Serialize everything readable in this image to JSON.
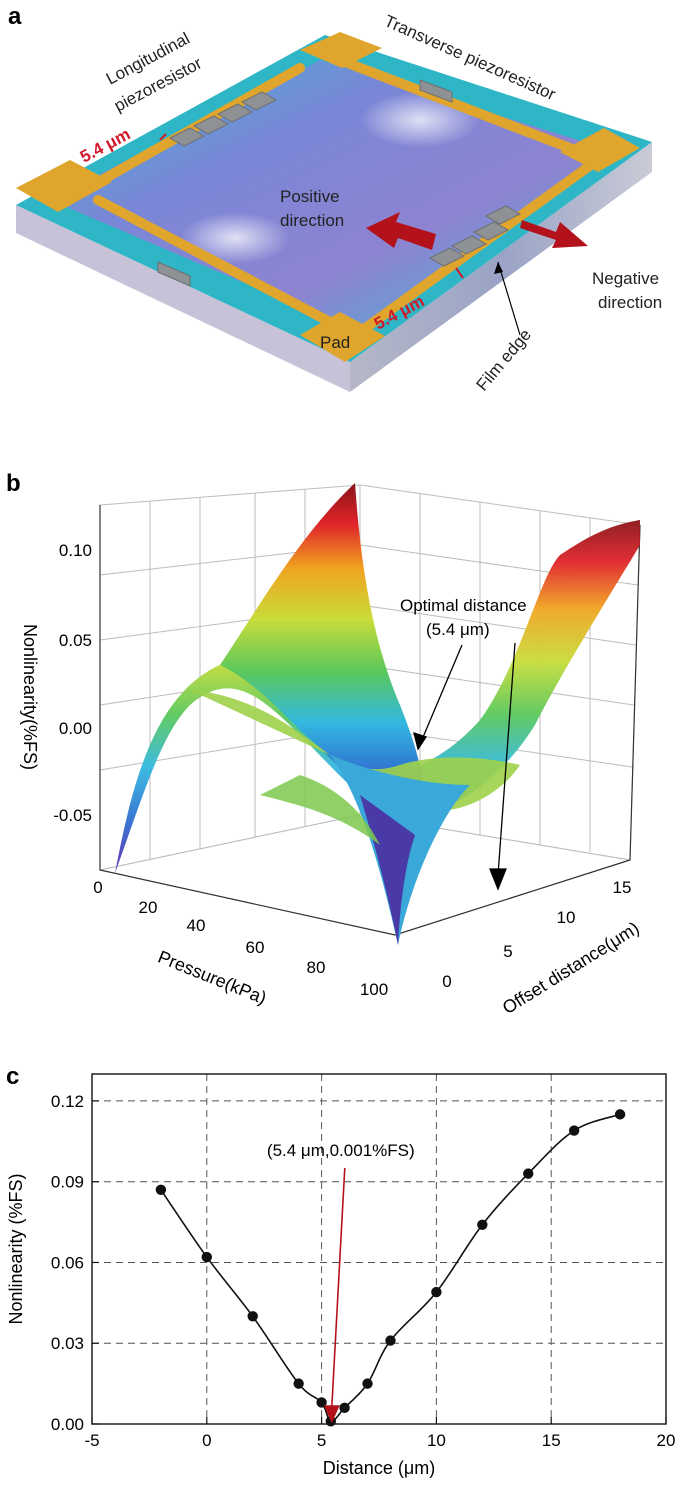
{
  "panel_a": {
    "panel_label": "a",
    "labels": {
      "longitudinal_1": "Longitudinal",
      "longitudinal_2": "piezoresistor",
      "transverse": "Transverse piezoresistor",
      "dim_top": "5.4 μm",
      "dim_bottom": "5.4 μm",
      "positive_1": "Positive",
      "positive_2": "direction",
      "negative_1": "Negative",
      "negative_2": "direction",
      "pad": "Pad",
      "film_edge": "Film edge"
    },
    "colors": {
      "pad": "#e0a52c",
      "membrane": "#6a8fd8",
      "arrow": "#b3121b",
      "dim_text": "#d0192b"
    }
  },
  "panel_b": {
    "panel_label": "b",
    "z_label": "Nonlinearity(%FS)",
    "z_ticks": [
      "0.10",
      "0.05",
      "0.00",
      "-0.05"
    ],
    "x_label": "Pressure(kPa)",
    "x_ticks": [
      "0",
      "20",
      "40",
      "60",
      "80",
      "100"
    ],
    "y_label": "Offset distance(μm)",
    "y_ticks": [
      "0",
      "5",
      "10",
      "15"
    ],
    "annotation_1": "Optimal distance",
    "annotation_2": "(5.4 μm)"
  },
  "chart_data": {
    "type": "line",
    "panel_label": "c",
    "title": "",
    "xlabel": "Distance (μm)",
    "ylabel": "Nonlinearity (%FS)",
    "xlim": [
      -5,
      20
    ],
    "ylim": [
      0,
      0.13
    ],
    "x_ticks": [
      -5,
      0,
      5,
      10,
      15,
      20
    ],
    "y_ticks": [
      0.0,
      0.03,
      0.06,
      0.09,
      0.12
    ],
    "x_tick_labels": [
      "-5",
      "0",
      "5",
      "10",
      "15",
      "20"
    ],
    "y_tick_labels": [
      "0.00",
      "0.03",
      "0.06",
      "0.09",
      "0.12"
    ],
    "grid": true,
    "series": [
      {
        "name": "Nonlinearity",
        "x": [
          -2,
          0,
          2,
          4,
          5,
          5.4,
          6,
          7,
          8,
          10,
          12,
          14,
          16,
          18
        ],
        "values": [
          0.087,
          0.062,
          0.04,
          0.015,
          0.008,
          0.001,
          0.006,
          0.015,
          0.031,
          0.049,
          0.074,
          0.093,
          0.109,
          0.115
        ]
      }
    ],
    "annotation": {
      "text": "(5.4 μm,0.001%FS)",
      "x": 5.4,
      "y": 0.001
    }
  }
}
